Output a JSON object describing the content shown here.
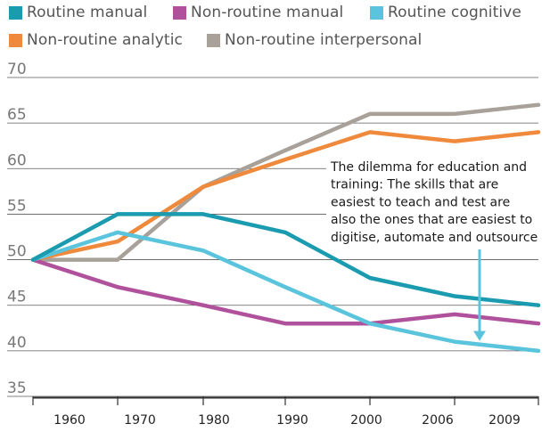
{
  "chart_data": {
    "type": "line",
    "title": "",
    "xlabel": "",
    "ylabel": "",
    "categories": [
      "1960",
      "1970",
      "1980",
      "1990",
      "2000",
      "2006",
      "2009"
    ],
    "ylim": [
      35,
      70
    ],
    "yticks": [
      35,
      40,
      45,
      50,
      55,
      60,
      65,
      70
    ],
    "grid": "horizontal",
    "legend_position": "top",
    "series": [
      {
        "name": "Routine manual",
        "color": "#1a9bb0",
        "values": [
          50,
          55,
          55,
          53,
          48,
          46,
          45
        ]
      },
      {
        "name": "Non-routine manual",
        "color": "#b0519c",
        "values": [
          50,
          47,
          45,
          43,
          43,
          44,
          43
        ]
      },
      {
        "name": "Routine cognitive",
        "color": "#5bc4dd",
        "values": [
          50,
          53,
          51,
          47,
          43,
          41,
          40
        ]
      },
      {
        "name": "Non-routine analytic",
        "color": "#ef8a3c",
        "values": [
          50,
          52,
          58,
          61,
          64,
          63,
          64
        ]
      },
      {
        "name": "Non-routine interpersonal",
        "color": "#a8a19a",
        "values": [
          50,
          50,
          58,
          62,
          66,
          66,
          67
        ]
      }
    ],
    "annotation": {
      "lines": [
        "The dilemma for education and",
        "training: The skills that are",
        "easiest to teach and test are",
        "also the ones that are easiest to",
        "digitise, automate and outsource"
      ],
      "arrow_color": "#5bc4dd",
      "arrow_target_category": "2006",
      "arrow_target_value": 41
    }
  }
}
